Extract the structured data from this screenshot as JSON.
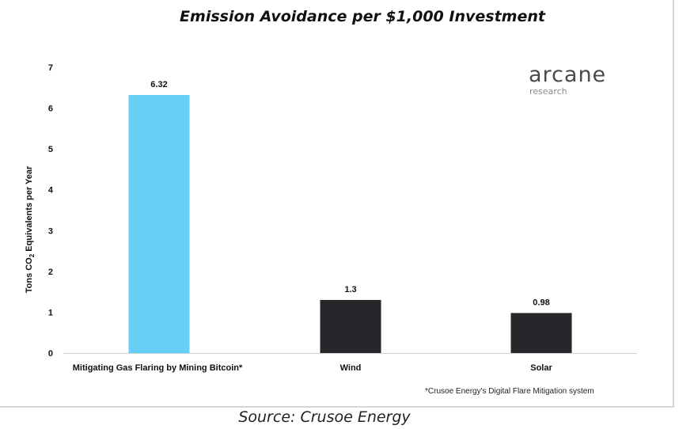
{
  "chart_data": {
    "type": "bar",
    "title": "Emission Avoidance per $1,000 Investment",
    "ylabel_main": "Tons CO",
    "ylabel_sub": "2",
    "ylabel_rest": " Equivalents per Year",
    "categories": [
      "Mitigating Gas Flaring by Mining Bitcoin*",
      "Wind",
      "Solar"
    ],
    "values": [
      6.32,
      1.3,
      0.98
    ],
    "value_labels": [
      "6.32",
      "1.3",
      "0.98"
    ],
    "bar_colors": [
      "#66cdf5",
      "#25272b",
      "#25272b"
    ],
    "ylim": [
      0,
      7
    ],
    "yticks": [
      "0",
      "1",
      "2",
      "3",
      "4",
      "5",
      "6",
      "7"
    ],
    "grid": false
  },
  "logo": {
    "main": "arcane",
    "sub": "research"
  },
  "footnote": "*Crusoe Energy's Digital Flare Mitigation system",
  "source": "Source: Crusoe Energy"
}
